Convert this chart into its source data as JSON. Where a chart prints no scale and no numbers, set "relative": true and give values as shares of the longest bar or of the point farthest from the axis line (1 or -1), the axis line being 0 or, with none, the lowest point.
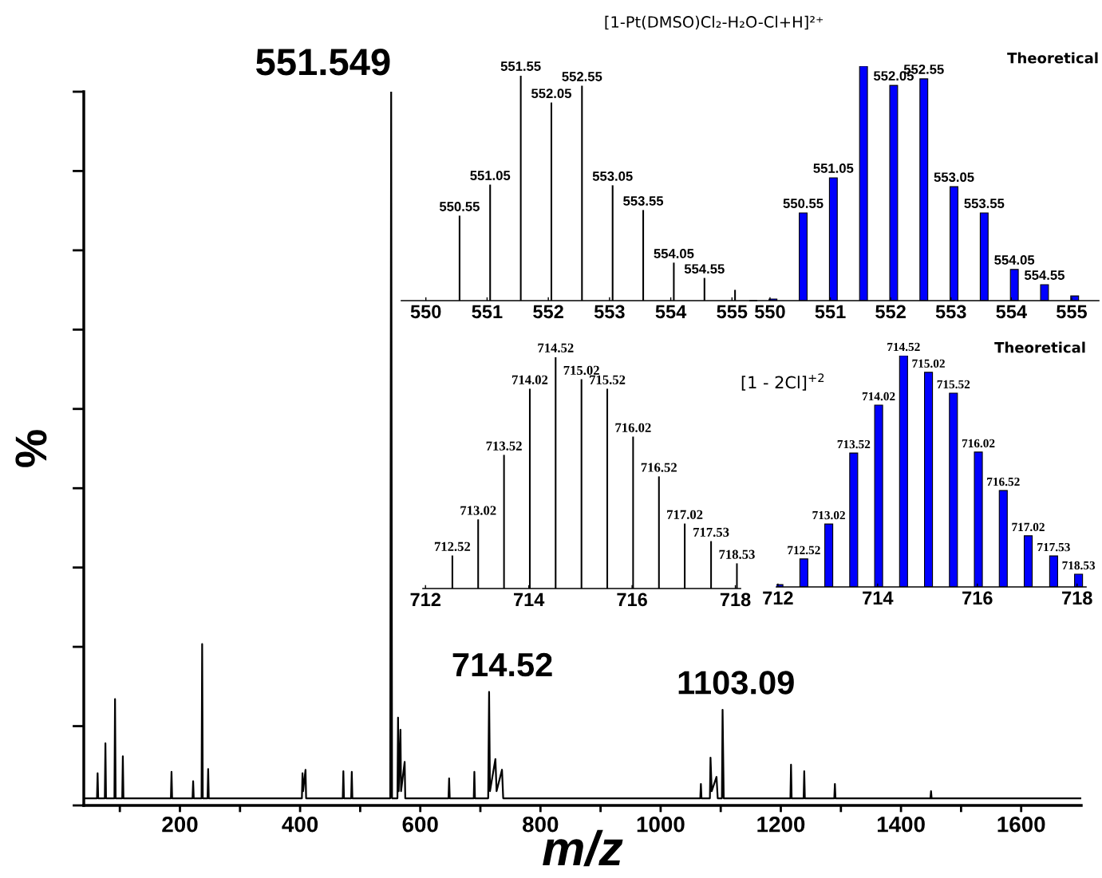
{
  "chart_data": [
    {
      "type": "line",
      "relative": true,
      "ylabel": "%",
      "xlabel": "m/z",
      "xlim": [
        40,
        1700
      ],
      "xticks": [
        {
          "value": 100,
          "label": null
        },
        200,
        {
          "value": 300,
          "label": null
        },
        400,
        {
          "value": 500,
          "label": null
        },
        600,
        {
          "value": 700,
          "label": null
        },
        800,
        {
          "value": 900,
          "label": null
        },
        1000,
        {
          "value": 1100,
          "label": null
        },
        1200,
        {
          "value": 1300,
          "label": null
        },
        1400,
        {
          "value": 1500,
          "label": null
        },
        1600
      ],
      "series": [
        {
          "color": "#000000",
          "x": [
            40,
            62,
            63,
            64,
            75,
            76,
            77,
            91,
            92,
            93,
            104,
            105,
            106,
            185,
            186,
            187,
            221,
            222,
            223,
            236,
            237,
            238,
            246,
            247,
            248,
            403,
            404,
            405,
            409,
            410,
            471,
            472,
            473,
            485,
            486,
            487,
            550,
            551.549,
            553,
            562,
            563,
            564,
            567,
            568,
            574,
            575,
            647,
            648,
            649,
            689,
            690,
            691,
            713,
            714.52,
            716,
            725,
            727,
            736,
            738,
            1066,
            1067,
            1068,
            1082,
            1083,
            1085,
            1093,
            1095,
            1102,
            1103.09,
            1105,
            1216,
            1217,
            1218,
            1238,
            1239,
            1240,
            1289,
            1290,
            1291,
            1449,
            1450,
            1451,
            1700
          ],
          "values": [
            0.01,
            0.01,
            0.045,
            0.01,
            0.01,
            0.087,
            0.01,
            0.01,
            0.149,
            0.01,
            0.01,
            0.069,
            0.01,
            0.01,
            0.047,
            0.01,
            0.01,
            0.034,
            0.01,
            0.01,
            0.226,
            0.01,
            0.01,
            0.051,
            0.01,
            0.01,
            0.045,
            0.02,
            0.05,
            0.01,
            0.01,
            0.048,
            0.01,
            0.01,
            0.047,
            0.01,
            0.01,
            1.0,
            0.01,
            0.01,
            0.123,
            0.02,
            0.106,
            0.02,
            0.061,
            0.01,
            0.01,
            0.038,
            0.01,
            0.01,
            0.047,
            0.01,
            0.01,
            0.159,
            0.02,
            0.065,
            0.02,
            0.05,
            0.01,
            0.01,
            0.03,
            0.01,
            0.01,
            0.067,
            0.02,
            0.04,
            0.01,
            0.01,
            0.134,
            0.01,
            0.01,
            0.057,
            0.01,
            0.01,
            0.048,
            0.01,
            0.01,
            0.03,
            0.01,
            0.01,
            0.02,
            0.01,
            0.01
          ]
        }
      ],
      "annotations": [
        {
          "text": "551.549",
          "x": 551.549,
          "y": 1.0
        },
        {
          "text": "714.52",
          "x": 714.52,
          "y": 0.159
        },
        {
          "text": "1103.09",
          "x": 1103.09,
          "y": 0.134
        }
      ]
    },
    {
      "type": "bar",
      "relative": true,
      "xlim": [
        549.6,
        555.4
      ],
      "xticks": [
        550,
        551,
        552,
        553,
        554,
        555
      ],
      "x": [
        550.55,
        551.05,
        551.55,
        552.05,
        552.55,
        553.05,
        553.55,
        554.05,
        554.55,
        555.05
      ],
      "values": [
        0.376,
        0.514,
        1.0,
        0.879,
        0.954,
        0.511,
        0.401,
        0.167,
        0.099,
        0.046
      ],
      "color": "#000000",
      "annotations": [
        "[1-Pt(DMSO)Cl₂-H₂O-Cl+H]²⁺",
        {
          "text": "550.55",
          "x": 550.55,
          "y": 0.376
        },
        {
          "text": "551.05",
          "x": 551.05,
          "y": 0.514
        },
        {
          "text": "551.55",
          "x": 551.55,
          "y": 1.0
        },
        {
          "text": "552.05",
          "x": 552.05,
          "y": 0.879
        },
        {
          "text": "552.55",
          "x": 552.55,
          "y": 0.954
        },
        {
          "text": "553.05",
          "x": 553.05,
          "y": 0.511
        },
        {
          "text": "553.55",
          "x": 553.55,
          "y": 0.401
        },
        {
          "text": "554.05",
          "x": 554.05,
          "y": 0.167
        },
        {
          "text": "554.55",
          "x": 554.55,
          "y": 0.099
        }
      ]
    },
    {
      "type": "bar",
      "relative": true,
      "xlim": [
        549.67,
        555.45
      ],
      "xticks": [
        550,
        551,
        552,
        553,
        554,
        555
      ],
      "x": [
        550.05,
        550.55,
        551.05,
        551.55,
        552.05,
        552.55,
        553.05,
        553.55,
        554.05,
        554.55,
        555.05
      ],
      "values": [
        0.007,
        0.374,
        0.524,
        1.0,
        0.918,
        0.946,
        0.486,
        0.374,
        0.133,
        0.068,
        0.02
      ],
      "color": "#0000ff",
      "annotations": [
        "Theoretical",
        {
          "text": "550.55",
          "x": 550.55,
          "y": 0.374
        },
        {
          "text": "551.05",
          "x": 551.05,
          "y": 0.524
        },
        {
          "text": "552.05",
          "x": 552.05,
          "y": 0.918
        },
        {
          "text": "552.55",
          "x": 552.55,
          "y": 0.946
        },
        {
          "text": "553.05",
          "x": 553.05,
          "y": 0.486
        },
        {
          "text": "553.55",
          "x": 553.55,
          "y": 0.374
        },
        {
          "text": "554.05",
          "x": 554.05,
          "y": 0.133
        },
        {
          "text": "554.55",
          "x": 554.55,
          "y": 0.068
        }
      ]
    },
    {
      "type": "bar",
      "relative": true,
      "xlim": [
        711.95,
        718.1
      ],
      "xticks": [
        712,
        714,
        716,
        718
      ],
      "x": [
        712.52,
        713.02,
        713.52,
        714.02,
        714.52,
        715.02,
        715.52,
        716.02,
        716.52,
        717.02,
        717.53,
        718.03
      ],
      "values": [
        0.141,
        0.297,
        0.576,
        0.862,
        1.0,
        0.903,
        0.862,
        0.655,
        0.483,
        0.279,
        0.203,
        0.107
      ],
      "color": "#000000",
      "annotations": [
        "[1 - 2Cl]$^{+2}$",
        {
          "text": "712.52",
          "x": 712.52,
          "y": 0.141
        },
        {
          "text": "713.02",
          "x": 713.02,
          "y": 0.297
        },
        {
          "text": "713.52",
          "x": 713.52,
          "y": 0.576
        },
        {
          "text": "714.02",
          "x": 714.02,
          "y": 0.862
        },
        {
          "text": "714.52",
          "x": 714.52,
          "y": 1.0
        },
        {
          "text": "715.02",
          "x": 715.02,
          "y": 0.903
        },
        {
          "text": "715.52",
          "x": 715.52,
          "y": 0.862
        },
        {
          "text": "716.02",
          "x": 716.02,
          "y": 0.655
        },
        {
          "text": "716.52",
          "x": 716.52,
          "y": 0.483
        },
        {
          "text": "717.02",
          "x": 717.02,
          "y": 0.279
        },
        {
          "text": "717.53",
          "x": 717.53,
          "y": 0.203
        },
        {
          "text": "718.53",
          "x": 718.03,
          "y": 0.107
        }
      ]
    },
    {
      "type": "bar",
      "relative": true,
      "xlim": [
        711.97,
        718.18
      ],
      "xticks": [
        712,
        714,
        716,
        718
      ],
      "x": [
        712.02,
        712.52,
        713.02,
        713.52,
        714.02,
        714.52,
        715.02,
        715.52,
        716.02,
        716.52,
        717.02,
        717.53,
        718.03
      ],
      "values": [
        0.01,
        0.121,
        0.272,
        0.579,
        0.786,
        1.0,
        0.928,
        0.838,
        0.583,
        0.417,
        0.221,
        0.134,
        0.055
      ],
      "color": "#0000ff",
      "annotations": [
        "Theoretical",
        {
          "text": "712.52",
          "x": 712.52,
          "y": 0.121
        },
        {
          "text": "713.02",
          "x": 713.02,
          "y": 0.272
        },
        {
          "text": "713.52",
          "x": 713.52,
          "y": 0.579
        },
        {
          "text": "714.02",
          "x": 714.02,
          "y": 0.786
        },
        {
          "text": "714.52",
          "x": 714.52,
          "y": 1.0
        },
        {
          "text": "715.02",
          "x": 715.02,
          "y": 0.928
        },
        {
          "text": "715.52",
          "x": 715.52,
          "y": 0.838
        },
        {
          "text": "716.02",
          "x": 716.02,
          "y": 0.583
        },
        {
          "text": "716.52",
          "x": 716.52,
          "y": 0.417
        },
        {
          "text": "717.02",
          "x": 717.02,
          "y": 0.221
        },
        {
          "text": "717.53",
          "x": 717.53,
          "y": 0.134
        },
        {
          "text": "718.53",
          "x": 718.03,
          "y": 0.055
        }
      ]
    }
  ]
}
